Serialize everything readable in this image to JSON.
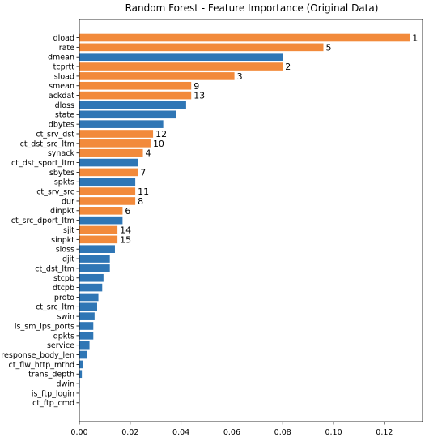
{
  "chart_data": {
    "type": "bar",
    "orientation": "horizontal",
    "title": "Random Forest - Feature Importance (Original Data)",
    "xlabel": "",
    "ylabel": "",
    "xlim": [
      0,
      0.135
    ],
    "xticks": [
      "0.00",
      "0.02",
      "0.04",
      "0.06",
      "0.08",
      "0.10",
      "0.12"
    ],
    "xtick_values": [
      0,
      0.02,
      0.04,
      0.06,
      0.08,
      0.1,
      0.12
    ],
    "grid": false,
    "colors": {
      "highlighted": "#f28a3b",
      "default": "#2f76b5"
    },
    "categories": [
      "dload",
      "rate",
      "dmean",
      "tcprtt",
      "sload",
      "smean",
      "ackdat",
      "dloss",
      "state",
      "dbytes",
      "ct_srv_dst",
      "ct_dst_src_ltm",
      "synack",
      "ct_dst_sport_ltm",
      "sbytes",
      "spkts",
      "ct_srv_src",
      "dur",
      "dinpkt",
      "ct_src_dport_ltm",
      "sjit",
      "sinpkt",
      "sloss",
      "djit",
      "ct_dst_ltm",
      "stcpb",
      "dtcpb",
      "proto",
      "ct_src_ltm",
      "swin",
      "is_sm_ips_ports",
      "dpkts",
      "service",
      "response_body_len",
      "ct_flw_http_mthd",
      "trans_depth",
      "dwin",
      "is_ftp_login",
      "ct_ftp_cmd"
    ],
    "values": [
      0.13,
      0.096,
      0.08,
      0.08,
      0.061,
      0.044,
      0.044,
      0.042,
      0.038,
      0.033,
      0.029,
      0.028,
      0.025,
      0.023,
      0.023,
      0.022,
      0.022,
      0.022,
      0.017,
      0.017,
      0.015,
      0.015,
      0.014,
      0.012,
      0.012,
      0.0095,
      0.009,
      0.0075,
      0.007,
      0.006,
      0.0055,
      0.0055,
      0.004,
      0.003,
      0.0015,
      0.001,
      0.0002,
      0.0001,
      0.0001
    ],
    "highlighted": [
      true,
      true,
      false,
      true,
      true,
      true,
      true,
      false,
      false,
      false,
      true,
      true,
      true,
      false,
      true,
      false,
      true,
      true,
      true,
      false,
      true,
      true,
      false,
      false,
      false,
      false,
      false,
      false,
      false,
      false,
      false,
      false,
      false,
      false,
      false,
      false,
      false,
      false,
      false
    ],
    "rank_labels": [
      "1",
      "5",
      "",
      "2",
      "3",
      "9",
      "13",
      "",
      "",
      "",
      "12",
      "10",
      "4",
      "",
      "7",
      "",
      "11",
      "8",
      "6",
      "",
      "14",
      "15",
      "",
      "",
      "",
      "",
      "",
      "",
      "",
      "",
      "",
      "",
      "",
      "",
      "",
      "",
      "",
      "",
      ""
    ]
  }
}
